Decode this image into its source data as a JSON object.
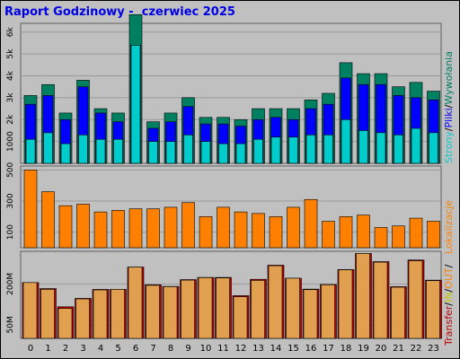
{
  "title": "Raport Godzinowy -  czerwiec 2025",
  "colors": {
    "background": "#c0c0c0",
    "strony": "#00cccc",
    "pliki": "#0000ff",
    "wywolania": "#008060",
    "lokalizacje": "#ff8000",
    "transfer_in": "#e0a050",
    "transfer_out": "#c00000"
  },
  "chart_data": [
    {
      "type": "bar",
      "categories": [
        "0",
        "1",
        "2",
        "3",
        "4",
        "5",
        "6",
        "7",
        "8",
        "9",
        "10",
        "11",
        "12",
        "13",
        "14",
        "15",
        "16",
        "17",
        "18",
        "19",
        "20",
        "21",
        "22",
        "23"
      ],
      "ylim": [
        0,
        6400
      ],
      "ytick_labels": [
        "1000",
        "2k",
        "3k",
        "4k",
        "5k",
        "6k"
      ],
      "ytick_values": [
        1000,
        2000,
        3000,
        4000,
        5000,
        6000
      ],
      "legend": {
        "strony": "Strony",
        "sep1": "/",
        "pliki": "Pliki",
        "sep2": "/",
        "wywolania": "Wywołania"
      },
      "series": [
        {
          "name": "Wywołania",
          "values": [
            3100,
            3600,
            2300,
            3800,
            2500,
            2300,
            6800,
            1900,
            2300,
            3000,
            2100,
            2100,
            2000,
            2500,
            2500,
            2500,
            2900,
            3200,
            4600,
            4100,
            4100,
            3500,
            3700,
            3300
          ]
        },
        {
          "name": "Pliki",
          "values": [
            2700,
            3100,
            2000,
            3500,
            2300,
            1900,
            5400,
            1600,
            1900,
            2600,
            1800,
            1800,
            1700,
            2000,
            2100,
            2000,
            2500,
            2700,
            3900,
            3600,
            3600,
            3100,
            3000,
            2900
          ]
        },
        {
          "name": "Strony",
          "values": [
            1100,
            1400,
            900,
            1300,
            1100,
            1100,
            5400,
            1000,
            1000,
            1300,
            1000,
            900,
            900,
            1100,
            1200,
            1200,
            1300,
            1300,
            2000,
            1500,
            1400,
            1300,
            1600,
            1400
          ]
        }
      ]
    },
    {
      "type": "bar",
      "categories": [
        "0",
        "1",
        "2",
        "3",
        "4",
        "5",
        "6",
        "7",
        "8",
        "9",
        "10",
        "11",
        "12",
        "13",
        "14",
        "15",
        "16",
        "17",
        "18",
        "19",
        "20",
        "21",
        "22",
        "23"
      ],
      "ylim": [
        0,
        525
      ],
      "ytick_labels": [
        "100",
        "300",
        "500"
      ],
      "ytick_values": [
        100,
        300,
        500
      ],
      "legend": {
        "lokalizacje": "Lokalizacje"
      },
      "series": [
        {
          "name": "Lokalizacje",
          "values": [
            500,
            360,
            270,
            280,
            230,
            240,
            250,
            250,
            260,
            290,
            200,
            260,
            230,
            220,
            200,
            260,
            310,
            170,
            200,
            210,
            130,
            140,
            190,
            170
          ]
        }
      ]
    },
    {
      "type": "bar",
      "categories": [
        "0",
        "1",
        "2",
        "3",
        "4",
        "5",
        "6",
        "7",
        "8",
        "9",
        "10",
        "11",
        "12",
        "13",
        "14",
        "15",
        "16",
        "17",
        "18",
        "19",
        "20",
        "21",
        "22",
        "23"
      ],
      "ylim": [
        0,
        3200
      ],
      "ytick_labels": [
        "50M",
        "200M"
      ],
      "ytick_values": [
        500,
        2000
      ],
      "legend": {
        "transfer": "Transfer",
        "sep1": "/",
        "in": "IN",
        "sep2": "/",
        "out": "OUT",
        "sep3": "/"
      },
      "series": [
        {
          "name": "IN",
          "values": [
            2050,
            1800,
            1100,
            1450,
            1780,
            1800,
            2620,
            1950,
            1900,
            2140,
            2230,
            2220,
            1530,
            2130,
            2670,
            2210,
            1790,
            1970,
            2520,
            3120,
            2800,
            1880,
            2850,
            2120
          ]
        },
        {
          "name": "OUT",
          "values": [
            2050,
            1830,
            1160,
            1470,
            1800,
            1800,
            2620,
            1970,
            1910,
            2160,
            2240,
            2240,
            1570,
            2170,
            2690,
            2210,
            1810,
            1980,
            2530,
            3120,
            2820,
            1900,
            2880,
            2140
          ]
        }
      ]
    }
  ]
}
